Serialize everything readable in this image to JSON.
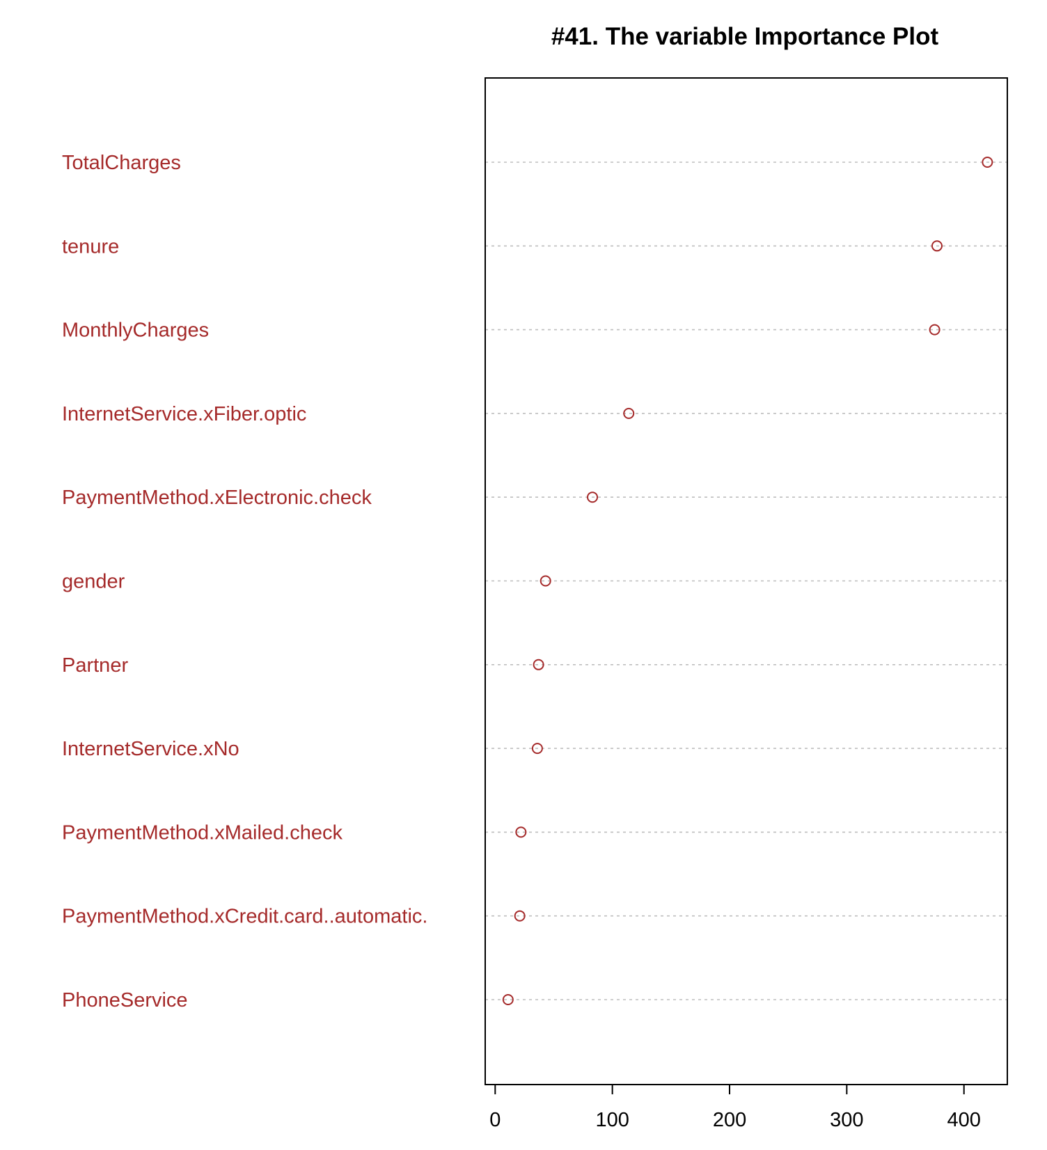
{
  "chart_data": {
    "type": "scatter",
    "title": "#41. The variable Importance Plot",
    "xlabel": "",
    "ylabel": "",
    "xlim": [
      -8.5,
      437
    ],
    "xticks": [
      0,
      100,
      200,
      300,
      400
    ],
    "grid": "dotted horizontal lines",
    "legend": "none",
    "categories": [
      "TotalCharges",
      "tenure",
      "MonthlyCharges",
      "InternetService.xFiber.optic",
      "PaymentMethod.xElectronic.check",
      "gender",
      "Partner",
      "InternetService.xNo",
      "PaymentMethod.xMailed.check",
      "PaymentMethod.xCredit.card..automatic.",
      "PhoneService"
    ],
    "values": [
      420,
      377,
      375,
      114,
      83,
      43,
      37,
      36,
      22,
      21,
      11
    ],
    "colors": {
      "label": "#A52A2A",
      "point": "#A52A2A",
      "gridline": "#BEBEBE",
      "axis": "#000000"
    }
  }
}
